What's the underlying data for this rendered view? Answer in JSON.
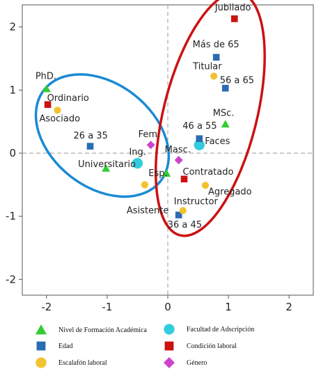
{
  "chart_data": {
    "type": "scatter",
    "title": "",
    "xlabel": "",
    "ylabel": "",
    "xlim": [
      -2.4,
      2.4
    ],
    "ylim": [
      -2.25,
      2.35
    ],
    "xticks": [
      "-2",
      "-1",
      "0",
      "1",
      "2"
    ],
    "yticks": [
      "2",
      "1",
      "0",
      "-1",
      "-2"
    ],
    "reference_lines": {
      "x": 0,
      "y": 0,
      "style": "dashed"
    },
    "series": [
      {
        "name": "Nivel de Formación Académica",
        "marker": "triangle",
        "color": "#33cc33",
        "points": [
          {
            "label": "PhD.",
            "x": -2.0,
            "y": 1.02
          },
          {
            "label": "Universitario",
            "x": -1.02,
            "y": -0.24
          },
          {
            "label": "Esp.",
            "x": -0.02,
            "y": -0.32
          },
          {
            "label": "MSc.",
            "x": 0.95,
            "y": 0.46
          }
        ]
      },
      {
        "name": "Facultad de Adscripción",
        "marker": "circle",
        "color": "#33ccdd",
        "points": [
          {
            "label": "Ing.",
            "x": -0.5,
            "y": -0.16
          },
          {
            "label": "Faces",
            "x": 0.52,
            "y": 0.13
          }
        ]
      },
      {
        "name": "Edad",
        "marker": "square",
        "color": "#2a6cb3",
        "points": [
          {
            "label": "26 a 35",
            "x": -1.28,
            "y": 0.11
          },
          {
            "label": "46 a 55",
            "x": 0.52,
            "y": 0.23
          },
          {
            "label": "Más de 65",
            "x": 0.8,
            "y": 1.52
          },
          {
            "label": "56 a 65",
            "x": 0.95,
            "y": 1.03
          },
          {
            "label": "36 a 45",
            "x": 0.18,
            "y": -0.98
          }
        ]
      },
      {
        "name": "Condición laboral",
        "marker": "square",
        "color": "#cc1111",
        "points": [
          {
            "label": "Ordinario",
            "x": -1.98,
            "y": 0.77
          },
          {
            "label": "Jubilado",
            "x": 1.1,
            "y": 2.13
          },
          {
            "label": "Contratado",
            "x": 0.27,
            "y": -0.41
          }
        ]
      },
      {
        "name": "Escalafón laboral",
        "marker": "circle",
        "color": "#f2c230",
        "points": [
          {
            "label": "Asociado",
            "x": -1.82,
            "y": 0.68
          },
          {
            "label": "Titular",
            "x": 0.76,
            "y": 1.22
          },
          {
            "label": "Asistente",
            "x": -0.38,
            "y": -0.5
          },
          {
            "label": "Agregado",
            "x": 0.62,
            "y": -0.51
          },
          {
            "label": "Instructor",
            "x": 0.25,
            "y": -0.91
          }
        ]
      },
      {
        "name": "Género",
        "marker": "diamond",
        "color": "#cc44cc",
        "points": [
          {
            "label": "Fem.",
            "x": -0.28,
            "y": 0.13
          },
          {
            "label": "Masc.",
            "x": 0.18,
            "y": -0.11
          }
        ]
      }
    ],
    "groupings": [
      {
        "color": "#1a8ad4",
        "center": [
          -1.08,
          0.28
        ],
        "rx": 1.22,
        "ry": 0.82,
        "rotation_deg": 38
      },
      {
        "color": "#cc1111",
        "center": [
          0.7,
          0.62
        ],
        "rx": 0.77,
        "ry": 1.98,
        "rotation_deg": 14
      }
    ],
    "legend": {
      "placement": "bottom",
      "entries": [
        {
          "label": "Nivel de Formación Académica",
          "marker": "triangle",
          "color": "#33cc33"
        },
        {
          "label": "Facultad de Adscripción",
          "marker": "circle",
          "color": "#33ccdd"
        },
        {
          "label": "Edad",
          "marker": "square",
          "color": "#2a6cb3"
        },
        {
          "label": "Condición laboral",
          "marker": "square",
          "color": "#cc1111"
        },
        {
          "label": "Escalafón laboral",
          "marker": "circle",
          "color": "#f2c230"
        },
        {
          "label": "Género",
          "marker": "diamond",
          "color": "#cc44cc"
        }
      ]
    }
  }
}
